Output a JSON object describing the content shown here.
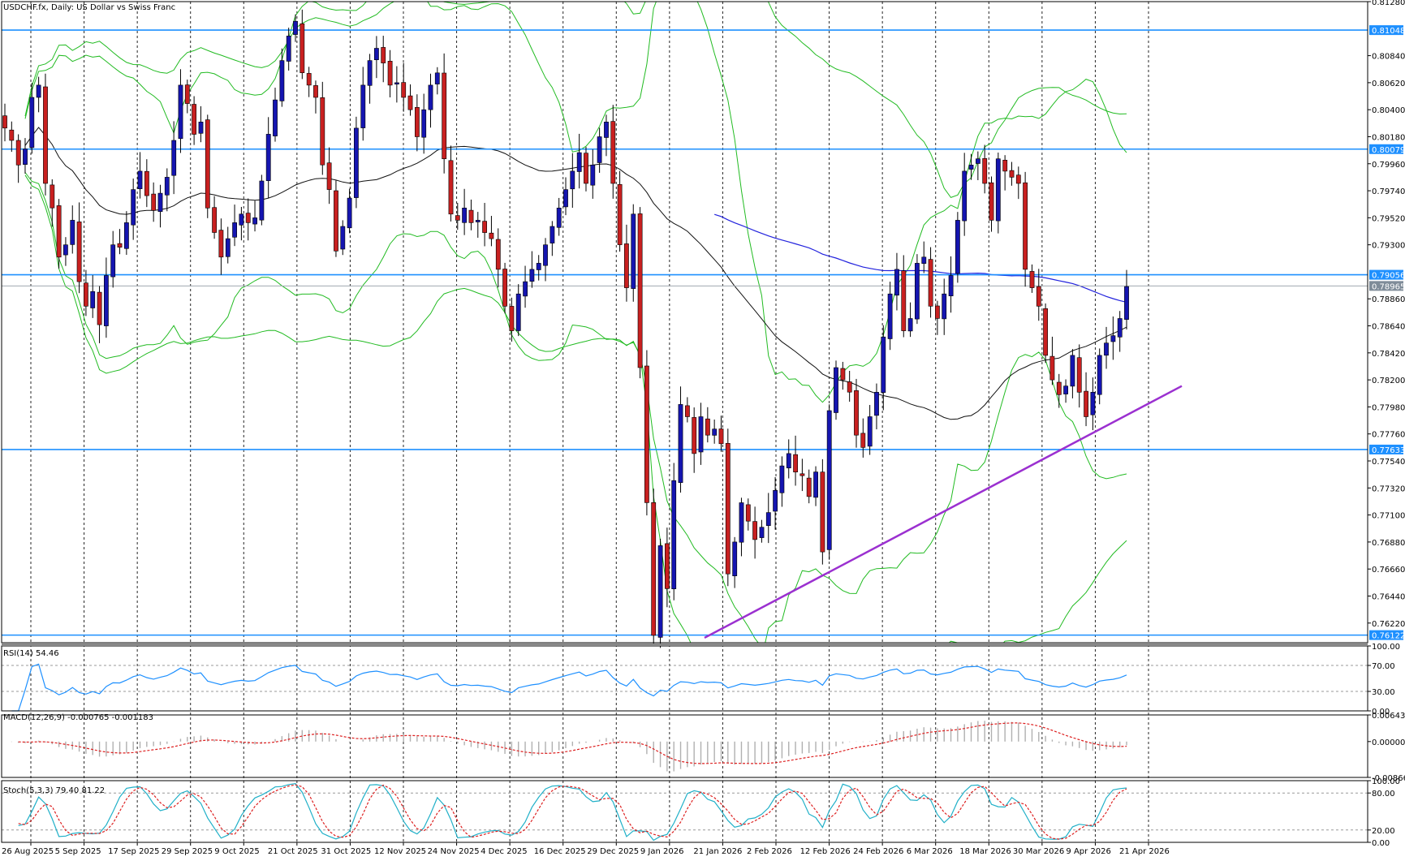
{
  "chart_data": {
    "type": "candlestick",
    "title": "USDCHF.fx, Daily:  US Dollar vs Swiss Franc",
    "ylim": [
      0.7606,
      0.8128
    ],
    "price_ticks": [
      "0.81280",
      "0.81048",
      "0.80840",
      "0.80620",
      "0.80400",
      "0.80180",
      "0.80079",
      "0.79960",
      "0.79740",
      "0.79520",
      "0.79300",
      "0.79056",
      "0.78965",
      "0.78860",
      "0.78640",
      "0.78420",
      "0.78200",
      "0.77980",
      "0.77760",
      "0.77633",
      "0.77540",
      "0.77320",
      "0.77100",
      "0.76880",
      "0.76660",
      "0.76440",
      "0.76220",
      "0.76122"
    ],
    "levels": [
      {
        "value": 0.81048,
        "label": "0.81048",
        "color": "#1e90ff"
      },
      {
        "value": 0.80079,
        "label": "0.80079",
        "color": "#1e90ff"
      },
      {
        "value": 0.79056,
        "label": "0.79056",
        "color": "#1e90ff"
      },
      {
        "value": 0.77633,
        "label": "0.77633",
        "color": "#1e90ff"
      },
      {
        "value": 0.76122,
        "label": "0.76122",
        "color": "#1e90ff"
      }
    ],
    "current_price": {
      "value": 0.78965,
      "label": "0.78965",
      "color": "#7f8c99"
    },
    "x_labels": [
      "26 Aug 2025",
      "5 Sep 2025",
      "17 Sep 2025",
      "29 Sep 2025",
      "9 Oct 2025",
      "21 Oct 2025",
      "31 Oct 2025",
      "12 Nov 2025",
      "24 Nov 2025",
      "4 Dec 2025",
      "16 Dec 2025",
      "29 Dec 2025",
      "9 Jan 2026",
      "21 Jan 2026",
      "2 Feb 2026",
      "12 Feb 2026",
      "24 Feb 2026",
      "6 Mar 2026",
      "18 Mar 2026",
      "30 Mar 2026",
      "9 Apr 2026",
      "21 Apr 2026"
    ],
    "trendline": {
      "from": [
        0,
        0.761
      ],
      "to": [
        1,
        0.7815
      ],
      "color": "#9b30d0"
    },
    "colors": {
      "bull": "#1515b0",
      "bear": "#c82020",
      "bollinger": "#22bb22",
      "ma_mid": "#111111",
      "ma_long": "#2222dd",
      "level": "#1e90ff",
      "rsi": "#1e90ff",
      "macd_signal": "#dd2020",
      "stoch_main": "#20b0c8",
      "stoch_signal": "#dd2020"
    },
    "closes": [
      0.8025,
      0.8015,
      0.7995,
      0.8008,
      0.805,
      0.806,
      0.798,
      0.796,
      0.792,
      0.793,
      0.795,
      0.79,
      0.788,
      0.7892,
      0.7865,
      0.7905,
      0.793,
      0.7928,
      0.7948,
      0.7975,
      0.799,
      0.797,
      0.7958,
      0.7972,
      0.7985,
      0.8015,
      0.806,
      0.8045,
      0.802,
      0.803,
      0.796,
      0.794,
      0.792,
      0.7935,
      0.7948,
      0.7955,
      0.7948,
      0.7952,
      0.7982,
      0.802,
      0.8048,
      0.808,
      0.81,
      0.8112,
      0.807,
      0.806,
      0.805,
      0.7995,
      0.7975,
      0.7925,
      0.7945,
      0.7968,
      0.8025,
      0.806,
      0.808,
      0.809,
      0.8078,
      0.806,
      0.8062,
      0.805,
      0.804,
      0.8018,
      0.804,
      0.806,
      0.807,
      0.8,
      0.7955,
      0.795,
      0.796,
      0.7948,
      0.795,
      0.794,
      0.7935,
      0.791,
      0.788,
      0.786,
      0.789,
      0.79,
      0.791,
      0.7915,
      0.793,
      0.7945,
      0.796,
      0.7975,
      0.799,
      0.8005,
      0.798,
      0.7995,
      0.8018,
      0.803,
      0.798,
      0.793,
      0.7895,
      0.7955,
      0.783,
      0.772,
      0.7612,
      0.7685,
      0.765,
      0.7738,
      0.78,
      0.779,
      0.776,
      0.779,
      0.7775,
      0.778,
      0.7768,
      0.7662,
      0.7688,
      0.772,
      0.7705,
      0.769,
      0.77,
      0.7712,
      0.773,
      0.775,
      0.776,
      0.7745,
      0.7742,
      0.7725,
      0.7745,
      0.768,
      0.7795,
      0.783,
      0.782,
      0.781,
      0.7775,
      0.7765,
      0.779,
      0.781,
      0.7855,
      0.789,
      0.791,
      0.786,
      0.787,
      0.7915,
      0.792,
      0.788,
      0.787,
      0.789,
      0.7905,
      0.795,
      0.799,
      0.7995,
      0.8,
      0.798,
      0.795,
      0.8,
      0.799,
      0.7985,
      0.798,
      0.791,
      0.7895,
      0.788,
      0.784,
      0.782,
      0.7808,
      0.7815,
      0.784,
      0.781,
      0.779,
      0.781,
      0.784,
      0.785,
      0.7856,
      0.787,
      0.7896
    ],
    "rsi": {
      "label": "RSI(14) 54.46",
      "ylim": [
        0,
        100
      ],
      "levels": [
        70,
        30
      ],
      "tick_labels": [
        "100.00",
        "70.00",
        "30.00",
        "0.00"
      ]
    },
    "macd": {
      "label": "MACD(12,26,9) -0.000765 -0.001183",
      "ylim": [
        -0.008662,
        0.006435
      ],
      "tick_labels": [
        "0.006435",
        "0.000000",
        "-0.008662"
      ]
    },
    "stoch": {
      "label": "Stoch(5,3,3) 79.40 81.22",
      "ylim": [
        0,
        100
      ],
      "levels": [
        80,
        20
      ],
      "tick_labels": [
        "100.00",
        "80.00",
        "20.00",
        "0.00"
      ]
    }
  }
}
